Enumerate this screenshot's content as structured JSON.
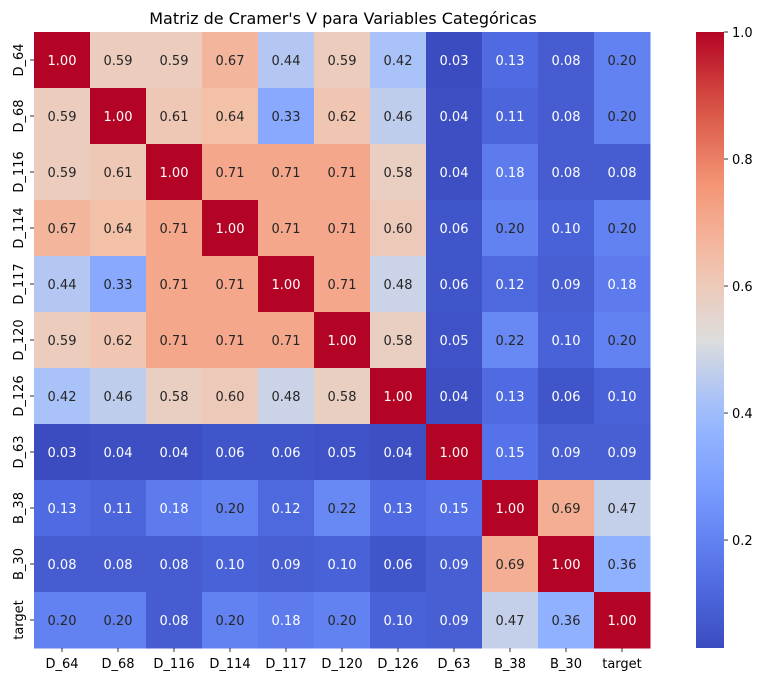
{
  "chart_data": {
    "type": "heatmap",
    "title": "Matriz de Cramer's V para Variables Categóricas",
    "xlabel": "",
    "ylabel": "",
    "x_categories": [
      "D_64",
      "D_68",
      "D_116",
      "D_114",
      "D_117",
      "D_120",
      "D_126",
      "D_63",
      "B_38",
      "B_30",
      "target"
    ],
    "y_categories": [
      "D_64",
      "D_68",
      "D_116",
      "D_114",
      "D_117",
      "D_120",
      "D_126",
      "D_63",
      "B_38",
      "B_30",
      "target"
    ],
    "values": [
      [
        1.0,
        0.59,
        0.59,
        0.67,
        0.44,
        0.59,
        0.42,
        0.03,
        0.13,
        0.08,
        0.2
      ],
      [
        0.59,
        1.0,
        0.61,
        0.64,
        0.33,
        0.62,
        0.46,
        0.04,
        0.11,
        0.08,
        0.2
      ],
      [
        0.59,
        0.61,
        1.0,
        0.71,
        0.71,
        0.71,
        0.58,
        0.04,
        0.18,
        0.08,
        0.08
      ],
      [
        0.67,
        0.64,
        0.71,
        1.0,
        0.71,
        0.71,
        0.6,
        0.06,
        0.2,
        0.1,
        0.2
      ],
      [
        0.44,
        0.33,
        0.71,
        0.71,
        1.0,
        0.71,
        0.48,
        0.06,
        0.12,
        0.09,
        0.18
      ],
      [
        0.59,
        0.62,
        0.71,
        0.71,
        0.71,
        1.0,
        0.58,
        0.05,
        0.22,
        0.1,
        0.2
      ],
      [
        0.42,
        0.46,
        0.58,
        0.6,
        0.48,
        0.58,
        1.0,
        0.04,
        0.13,
        0.06,
        0.1
      ],
      [
        0.03,
        0.04,
        0.04,
        0.06,
        0.06,
        0.05,
        0.04,
        1.0,
        0.15,
        0.09,
        0.09
      ],
      [
        0.13,
        0.11,
        0.18,
        0.2,
        0.12,
        0.22,
        0.13,
        0.15,
        1.0,
        0.69,
        0.47
      ],
      [
        0.08,
        0.08,
        0.08,
        0.1,
        0.09,
        0.1,
        0.06,
        0.09,
        0.69,
        1.0,
        0.36
      ],
      [
        0.2,
        0.2,
        0.08,
        0.2,
        0.18,
        0.2,
        0.1,
        0.09,
        0.47,
        0.36,
        1.0
      ]
    ],
    "colormap": "coolwarm",
    "vmin": 0.03,
    "vmax": 1.0,
    "annotations": true,
    "colorbar": {
      "ticks": [
        0.2,
        0.4,
        0.6,
        0.8,
        1.0
      ],
      "tick_labels": [
        "0.2",
        "0.4",
        "0.6",
        "0.8",
        "1.0"
      ]
    },
    "grid": false
  }
}
